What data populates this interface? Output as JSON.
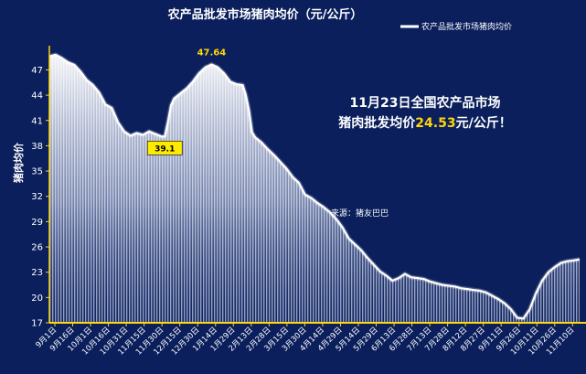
{
  "chart_data": {
    "type": "area",
    "title": "农产品批发市场猪肉均价（元/公斤）",
    "ylabel": "猪肉均价",
    "xlabel": "",
    "ylim": [
      17,
      49
    ],
    "yticks": [
      17,
      20,
      23,
      26,
      29,
      32,
      35,
      38,
      41,
      44,
      47
    ],
    "legend": {
      "label": "农产品批发市场猪肉均价",
      "position": "top-right"
    },
    "grid": false,
    "x_tick_labels": [
      "9月1日",
      "9月16日",
      "10月1日",
      "10月16日",
      "10月31日",
      "11月15日",
      "11月30日",
      "12月15日",
      "12月30日",
      "1月14日",
      "1月29日",
      "2月13日",
      "2月28日",
      "3月15日",
      "3月30日",
      "4月14日",
      "4月29日",
      "5月14日",
      "5月29日",
      "6月13日",
      "6月28日",
      "7月13日",
      "7月28日",
      "8月12日",
      "8月27日",
      "9月11日",
      "9月26日",
      "10月11日",
      "10月26日",
      "11月10日"
    ],
    "series": [
      {
        "name": "农产品批发市场猪肉均价",
        "color": "#ffffff",
        "values": [
          [
            0,
            48.6
          ],
          [
            1,
            48.8
          ],
          [
            2,
            48.4
          ],
          [
            3,
            47.9
          ],
          [
            4,
            47.6
          ],
          [
            5,
            46.8
          ],
          [
            6,
            45.8
          ],
          [
            7,
            45.2
          ],
          [
            8,
            44.3
          ],
          [
            9,
            42.9
          ],
          [
            10,
            42.5
          ],
          [
            11,
            40.8
          ],
          [
            12,
            39.7
          ],
          [
            13,
            39.2
          ],
          [
            14,
            39.5
          ],
          [
            15,
            39.3
          ],
          [
            16,
            39.7
          ],
          [
            17,
            39.4
          ],
          [
            18,
            39.1
          ],
          [
            18.5,
            39.1
          ],
          [
            19,
            40.8
          ],
          [
            19.5,
            42.8
          ],
          [
            20,
            43.6
          ],
          [
            21,
            44.2
          ],
          [
            22,
            44.8
          ],
          [
            23,
            45.6
          ],
          [
            24,
            46.6
          ],
          [
            25,
            47.3
          ],
          [
            26,
            47.64
          ],
          [
            27,
            47.3
          ],
          [
            28,
            46.6
          ],
          [
            29,
            45.6
          ],
          [
            30,
            45.3
          ],
          [
            31,
            45.2
          ],
          [
            31.5,
            44.0
          ],
          [
            32,
            42.2
          ],
          [
            32.5,
            39.6
          ],
          [
            33,
            39.0
          ],
          [
            34,
            38.4
          ],
          [
            35,
            37.6
          ],
          [
            36,
            36.9
          ],
          [
            37,
            36.1
          ],
          [
            38,
            35.3
          ],
          [
            39,
            34.3
          ],
          [
            40,
            33.6
          ],
          [
            41,
            32.2
          ],
          [
            42,
            31.8
          ],
          [
            43,
            31.2
          ],
          [
            44,
            30.7
          ],
          [
            45,
            30.1
          ],
          [
            46,
            29.3
          ],
          [
            47,
            28.3
          ],
          [
            48,
            27.0
          ],
          [
            49,
            26.3
          ],
          [
            50,
            25.6
          ],
          [
            51,
            24.7
          ],
          [
            52,
            23.9
          ],
          [
            53,
            23.1
          ],
          [
            54,
            22.6
          ],
          [
            55,
            22.0
          ],
          [
            56,
            22.3
          ],
          [
            57,
            22.8
          ],
          [
            58,
            22.4
          ],
          [
            59,
            22.3
          ],
          [
            60,
            22.2
          ],
          [
            61,
            21.9
          ],
          [
            62,
            21.7
          ],
          [
            63,
            21.5
          ],
          [
            64,
            21.4
          ],
          [
            65,
            21.3
          ],
          [
            66,
            21.1
          ],
          [
            67,
            21.0
          ],
          [
            68,
            20.9
          ],
          [
            69,
            20.8
          ],
          [
            70,
            20.6
          ],
          [
            71,
            20.2
          ],
          [
            72,
            19.8
          ],
          [
            73,
            19.3
          ],
          [
            74,
            18.6
          ],
          [
            75,
            17.6
          ],
          [
            76,
            17.5
          ],
          [
            77,
            18.6
          ],
          [
            78,
            20.5
          ],
          [
            79,
            22.0
          ],
          [
            80,
            23.0
          ],
          [
            81,
            23.6
          ],
          [
            82,
            24.1
          ],
          [
            83,
            24.3
          ],
          [
            84,
            24.4
          ],
          [
            85,
            24.53
          ]
        ]
      }
    ],
    "annotations": [
      {
        "text": "47.64",
        "x": 26,
        "y": 47.64,
        "style": "plain"
      },
      {
        "text": "39.1",
        "x": 18.5,
        "y": 39.1,
        "style": "boxed"
      }
    ],
    "headline": {
      "line1": "11月23日全国农产品市场",
      "line2_prefix": "猪肉批发均价",
      "line2_value": "24.53",
      "line2_suffix": "元/公斤！"
    },
    "source": "来源：猪友巴巴",
    "colors": {
      "background": "#0a1f5c",
      "line": "#ffffff",
      "area": "#ffffff",
      "axis": "#ffd60a",
      "highlight": "#ffd60a",
      "box": "#ffeb00"
    }
  }
}
